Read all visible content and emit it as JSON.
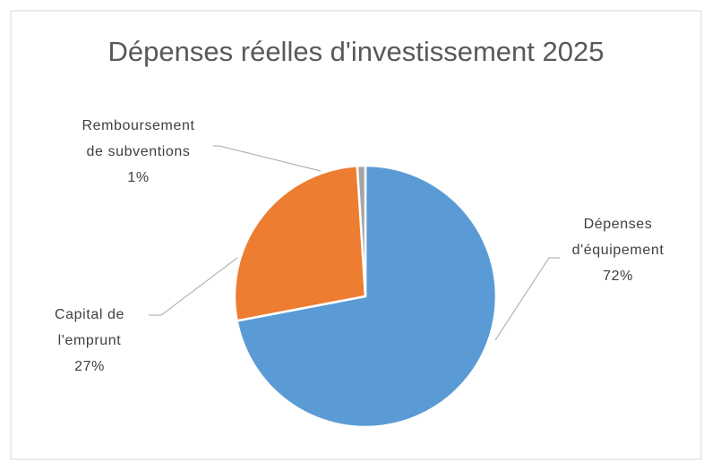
{
  "chart_data": {
    "type": "pie",
    "title": "Dépenses réelles d'investissement 2025",
    "categories": [
      "Dépenses d'équipement",
      "Capital de l'emprunt",
      "Remboursement de subventions"
    ],
    "values": [
      72,
      27,
      1
    ],
    "value_labels": [
      "72%",
      "27%",
      "1%"
    ],
    "colors": [
      "#5b9bd5",
      "#ed7d31",
      "#a5a5a5"
    ]
  }
}
